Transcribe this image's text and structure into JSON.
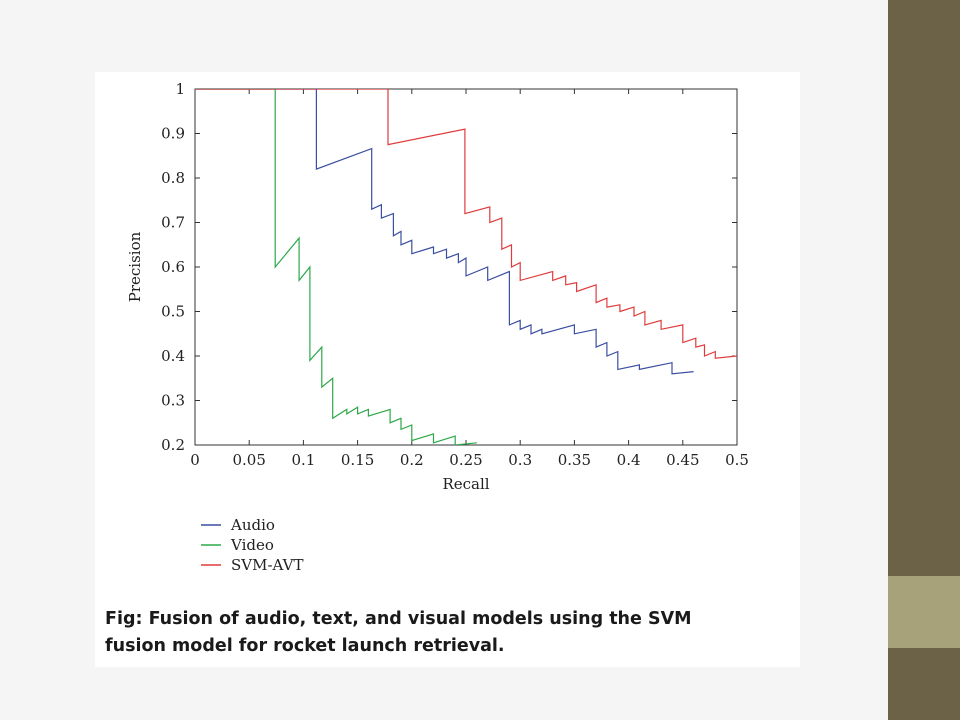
{
  "theme": {
    "sidebar_colors": [
      "#6b6248",
      "#a8a27a",
      "#6b6248"
    ],
    "background": "#f5f5f5"
  },
  "caption": {
    "line1": "Fig: Fusion of audio, text, and visual models using the SVM",
    "line2": "fusion model for rocket launch retrieval."
  },
  "chart_data": {
    "type": "line",
    "title": "",
    "xlabel": "Recall",
    "ylabel": "Precision",
    "xlim": [
      0,
      0.5
    ],
    "ylim": [
      0.2,
      1
    ],
    "x_ticks": [
      "0",
      "0.05",
      "0.1",
      "0.15",
      "0.2",
      "0.25",
      "0.3",
      "0.35",
      "0.4",
      "0.45",
      "0.5"
    ],
    "y_ticks": [
      "0.2",
      "0.3",
      "0.4",
      "0.5",
      "0.6",
      "0.7",
      "0.8",
      "0.9",
      "1"
    ],
    "grid": false,
    "legend_position": "below",
    "series": [
      {
        "name": "Audio",
        "color": "#3b4fa0",
        "points": [
          [
            0,
            1
          ],
          [
            0.112,
            1
          ],
          [
            0.112,
            0.82
          ],
          [
            0.163,
            0.866
          ],
          [
            0.163,
            0.73
          ],
          [
            0.172,
            0.74
          ],
          [
            0.172,
            0.71
          ],
          [
            0.183,
            0.72
          ],
          [
            0.183,
            0.67
          ],
          [
            0.19,
            0.68
          ],
          [
            0.19,
            0.65
          ],
          [
            0.2,
            0.66
          ],
          [
            0.2,
            0.63
          ],
          [
            0.22,
            0.645
          ],
          [
            0.22,
            0.63
          ],
          [
            0.232,
            0.64
          ],
          [
            0.232,
            0.62
          ],
          [
            0.243,
            0.63
          ],
          [
            0.243,
            0.61
          ],
          [
            0.25,
            0.62
          ],
          [
            0.25,
            0.58
          ],
          [
            0.27,
            0.6
          ],
          [
            0.27,
            0.57
          ],
          [
            0.29,
            0.59
          ],
          [
            0.29,
            0.47
          ],
          [
            0.3,
            0.48
          ],
          [
            0.3,
            0.46
          ],
          [
            0.31,
            0.47
          ],
          [
            0.31,
            0.45
          ],
          [
            0.32,
            0.46
          ],
          [
            0.32,
            0.45
          ],
          [
            0.35,
            0.47
          ],
          [
            0.35,
            0.45
          ],
          [
            0.37,
            0.46
          ],
          [
            0.37,
            0.42
          ],
          [
            0.38,
            0.43
          ],
          [
            0.38,
            0.4
          ],
          [
            0.39,
            0.41
          ],
          [
            0.39,
            0.37
          ],
          [
            0.41,
            0.38
          ],
          [
            0.41,
            0.37
          ],
          [
            0.44,
            0.385
          ],
          [
            0.44,
            0.36
          ],
          [
            0.46,
            0.365
          ]
        ]
      },
      {
        "name": "Video",
        "color": "#2da84a",
        "points": [
          [
            0,
            1
          ],
          [
            0.074,
            1
          ],
          [
            0.074,
            0.6
          ],
          [
            0.096,
            0.665
          ],
          [
            0.096,
            0.57
          ],
          [
            0.106,
            0.6
          ],
          [
            0.106,
            0.39
          ],
          [
            0.117,
            0.42
          ],
          [
            0.117,
            0.33
          ],
          [
            0.127,
            0.35
          ],
          [
            0.127,
            0.26
          ],
          [
            0.14,
            0.28
          ],
          [
            0.14,
            0.27
          ],
          [
            0.15,
            0.285
          ],
          [
            0.15,
            0.27
          ],
          [
            0.16,
            0.28
          ],
          [
            0.16,
            0.265
          ],
          [
            0.18,
            0.28
          ],
          [
            0.18,
            0.25
          ],
          [
            0.19,
            0.26
          ],
          [
            0.19,
            0.235
          ],
          [
            0.2,
            0.245
          ],
          [
            0.2,
            0.21
          ],
          [
            0.22,
            0.225
          ],
          [
            0.22,
            0.205
          ],
          [
            0.24,
            0.22
          ],
          [
            0.24,
            0.2
          ],
          [
            0.26,
            0.205
          ]
        ]
      },
      {
        "name": "SVM-AVT",
        "color": "#e03c3c",
        "points": [
          [
            0,
            1
          ],
          [
            0.178,
            1
          ],
          [
            0.178,
            0.875
          ],
          [
            0.249,
            0.91
          ],
          [
            0.249,
            0.72
          ],
          [
            0.272,
            0.735
          ],
          [
            0.272,
            0.7
          ],
          [
            0.283,
            0.71
          ],
          [
            0.283,
            0.64
          ],
          [
            0.292,
            0.65
          ],
          [
            0.292,
            0.6
          ],
          [
            0.3,
            0.61
          ],
          [
            0.3,
            0.57
          ],
          [
            0.33,
            0.59
          ],
          [
            0.33,
            0.57
          ],
          [
            0.342,
            0.58
          ],
          [
            0.342,
            0.56
          ],
          [
            0.352,
            0.565
          ],
          [
            0.352,
            0.545
          ],
          [
            0.37,
            0.56
          ],
          [
            0.37,
            0.52
          ],
          [
            0.38,
            0.53
          ],
          [
            0.38,
            0.51
          ],
          [
            0.392,
            0.515
          ],
          [
            0.392,
            0.5
          ],
          [
            0.405,
            0.51
          ],
          [
            0.405,
            0.49
          ],
          [
            0.415,
            0.5
          ],
          [
            0.415,
            0.47
          ],
          [
            0.43,
            0.48
          ],
          [
            0.43,
            0.46
          ],
          [
            0.45,
            0.47
          ],
          [
            0.45,
            0.43
          ],
          [
            0.462,
            0.44
          ],
          [
            0.462,
            0.42
          ],
          [
            0.47,
            0.425
          ],
          [
            0.47,
            0.4
          ],
          [
            0.48,
            0.41
          ],
          [
            0.48,
            0.395
          ],
          [
            0.5,
            0.4
          ]
        ]
      }
    ]
  }
}
